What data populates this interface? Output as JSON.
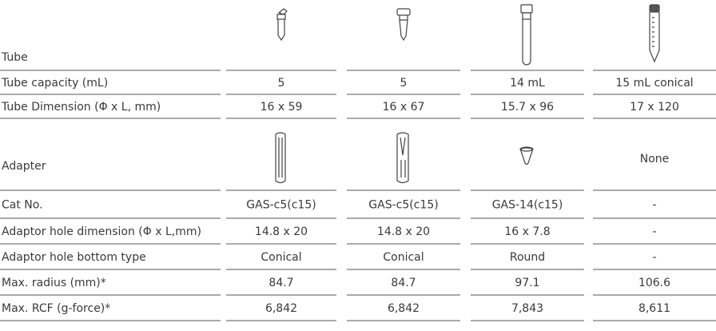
{
  "table": {
    "tube_label": "Tube",
    "adapter_label": "Adapter",
    "adapter_none": "None",
    "rows_top": [
      [
        "Tube capacity (mL)",
        "5",
        "5",
        "14 mL",
        "15 mL conical"
      ],
      [
        "Tube Dimension (Φ x L, mm)",
        "16 x 59",
        "16 x 67",
        "15.7 x 96",
        "17 x 120"
      ]
    ],
    "rows_bottom": [
      [
        "Cat No.",
        "GAS-c5(c15)",
        "GAS-c5(c15)",
        "GAS-14(c15)",
        "-"
      ],
      [
        "Adaptor hole dimension (Φ x L,mm)",
        "14.8 x 20",
        "14.8 x 20",
        "16 x 7.8",
        "-"
      ],
      [
        "Adaptor hole bottom type",
        "Conical",
        "Conical",
        "Round",
        "-"
      ],
      [
        "Max. radius (mm)*",
        "84.7",
        "84.7",
        "97.1",
        "106.6"
      ],
      [
        "Max. RCF (g-force)*",
        "6,842",
        "6,842",
        "7,843",
        "8,611"
      ]
    ]
  }
}
